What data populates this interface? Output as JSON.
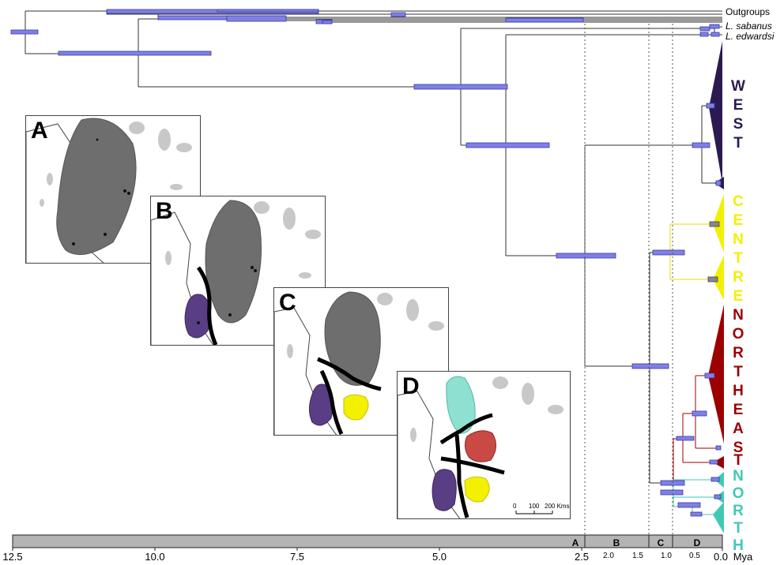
{
  "tip_labels": {
    "outgroups": "Outgroups",
    "sabanus": "L. sabanus",
    "edwardsi": "L. edwardsi"
  },
  "clades": [
    {
      "name": "WEST",
      "letters": [
        "W",
        "E",
        "S",
        "T"
      ],
      "color": "#2b1a52"
    },
    {
      "name": "CENTRE",
      "letters": [
        "C",
        "E",
        "N",
        "T",
        "R",
        "E"
      ],
      "color": "#f3f000"
    },
    {
      "name": "NORTHEAST",
      "letters": [
        "N",
        "O",
        "R",
        "T",
        "H",
        "E",
        "A",
        "S",
        "T"
      ],
      "color": "#9c0000"
    },
    {
      "name": "NORTH",
      "letters": [
        "N",
        "O",
        "R",
        "T",
        "H"
      ],
      "color": "#3fc9b5"
    }
  ],
  "maps": [
    {
      "letter": "A"
    },
    {
      "letter": "B"
    },
    {
      "letter": "C"
    },
    {
      "letter": "D",
      "scale_labels": [
        "0",
        "100",
        "200 Kms"
      ]
    }
  ],
  "axis": {
    "unit": "Mya",
    "major_ticks": [
      "12.5",
      "10.0",
      "7.5",
      "5.0",
      "2.5",
      "0.0"
    ],
    "minor_ticks": [
      "2.0",
      "1.5",
      "1.0",
      "0.5"
    ],
    "time_segments": [
      "A",
      "B",
      "C",
      "D"
    ]
  },
  "colors": {
    "bar": "#7f80e6",
    "bar_edge": "#3a3aa0",
    "axis_band": "#b4b4b4",
    "land_shade": "#c8c8c8",
    "range_gray": "#6e6e6e"
  }
}
